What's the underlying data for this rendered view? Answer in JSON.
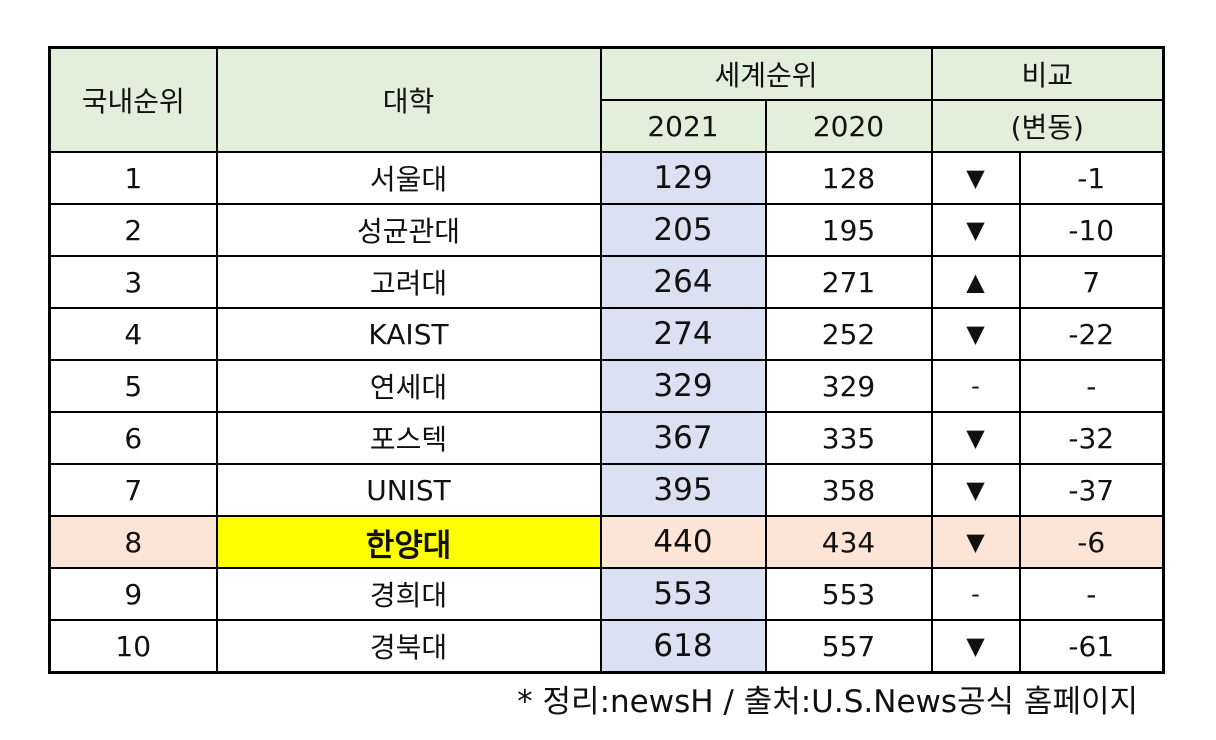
{
  "header": {
    "domestic_rank": "국내순위",
    "university": "대학",
    "world_rank": "세계순위",
    "year_2021": "2021",
    "year_2020": "2020",
    "compare": "비교",
    "change": "(변동)"
  },
  "rows": [
    {
      "rank": "1",
      "name": "서울대",
      "r2021": "129",
      "r2020": "128",
      "dir": "▼",
      "change": "-1"
    },
    {
      "rank": "2",
      "name": "성균관대",
      "r2021": "205",
      "r2020": "195",
      "dir": "▼",
      "change": "-10"
    },
    {
      "rank": "3",
      "name": "고려대",
      "r2021": "264",
      "r2020": "271",
      "dir": "▲",
      "change": "7"
    },
    {
      "rank": "4",
      "name": "KAIST",
      "r2021": "274",
      "r2020": "252",
      "dir": "▼",
      "change": "-22"
    },
    {
      "rank": "5",
      "name": "연세대",
      "r2021": "329",
      "r2020": "329",
      "dir": "-",
      "change": "-"
    },
    {
      "rank": "6",
      "name": "포스텍",
      "r2021": "367",
      "r2020": "335",
      "dir": "▼",
      "change": "-32"
    },
    {
      "rank": "7",
      "name": "UNIST",
      "r2021": "395",
      "r2020": "358",
      "dir": "▼",
      "change": "-37"
    },
    {
      "rank": "8",
      "name": "한양대",
      "r2021": "440",
      "r2020": "434",
      "dir": "▼",
      "change": "-6"
    },
    {
      "rank": "9",
      "name": "경희대",
      "r2021": "553",
      "r2020": "553",
      "dir": "-",
      "change": "-"
    },
    {
      "rank": "10",
      "name": "경북대",
      "r2021": "618",
      "r2020": "557",
      "dir": "▼",
      "change": "-61"
    }
  ],
  "highlight_row": 7,
  "colors": {
    "header": "#e2efda",
    "col2021": "#d9e1f2",
    "highlight_row": "#fce4d6",
    "highlight_cell": "#ffff00"
  },
  "footnote": "* 정리:newsH / 출처:U.S.News공식 홈페이지"
}
